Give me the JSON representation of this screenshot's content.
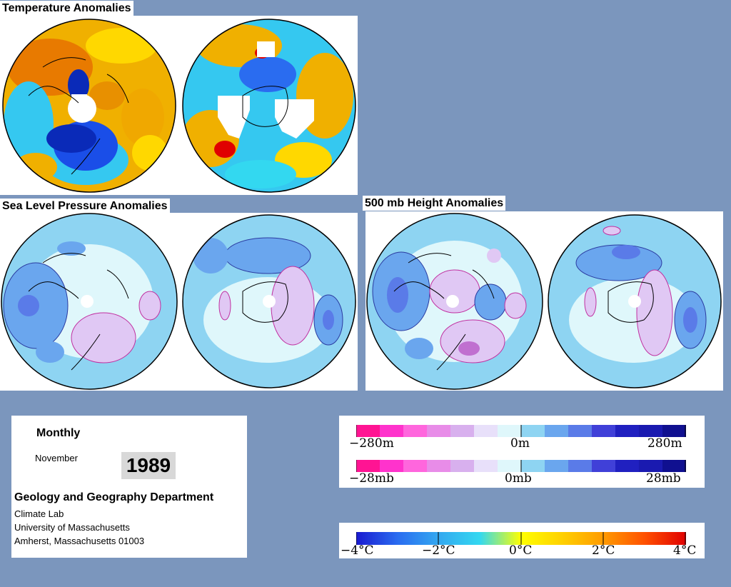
{
  "sections": {
    "temperature": {
      "title": "Temperature Anomalies"
    },
    "slp": {
      "title": "Sea Level Pressure Anomalies"
    },
    "height": {
      "title": "500 mb Height Anomalies"
    }
  },
  "info": {
    "period": "Monthly",
    "month": "November",
    "year": "1989",
    "department": "Geology and Geography Department",
    "lab": "Climate Lab",
    "university": "University of Massachusetts",
    "address": "Amherst, Massachusetts 01003"
  },
  "legends": {
    "height": {
      "left": "−280m",
      "center": "0m",
      "right": "280m"
    },
    "pressure": {
      "left": "−28mb",
      "center": "0mb",
      "right": "28mb"
    },
    "temperature": {
      "labels": [
        "−4°C",
        "−2°C",
        "0°C",
        "2°C",
        "4°C"
      ]
    }
  },
  "colors": {
    "background": "#7b96bd",
    "anomaly_scale_pink_to_blue": [
      "#ff1493",
      "#ff33cc",
      "#ff66dd",
      "#e88ce8",
      "#d8b0ee",
      "#e8e0fa",
      "#dff7fb",
      "#8ed4f2",
      "#6aa6ee",
      "#5a7be8",
      "#4040d8",
      "#2020c0",
      "#1a1ab0",
      "#101090"
    ],
    "temperature_scale": [
      "#1a1ad0",
      "#2a6cf0",
      "#33a8f0",
      "#33d8f0",
      "#ffff00",
      "#ffd000",
      "#ff9a00",
      "#ff5000",
      "#e00000"
    ]
  }
}
